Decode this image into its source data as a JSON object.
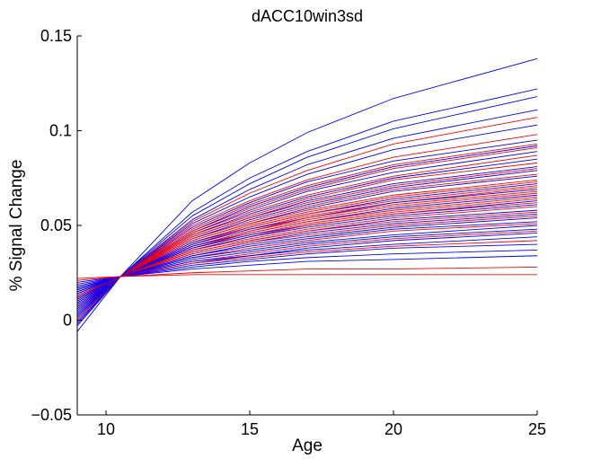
{
  "chart_data": {
    "type": "line",
    "title": "dACC10win3sd",
    "xlabel": "Age",
    "ylabel": "% Signal Change",
    "xlim": [
      9,
      25
    ],
    "ylim": [
      -0.05,
      0.15
    ],
    "xticks": [
      10,
      15,
      20,
      25
    ],
    "yticks": [
      -0.05,
      0,
      0.05,
      0.1,
      0.15
    ],
    "xtick_labels": [
      "10",
      "15",
      "20",
      "25"
    ],
    "ytick_labels": [
      "−0.05",
      "0",
      "0.05",
      "0.1",
      "0.15"
    ],
    "grid": false,
    "x": [
      9,
      10.5,
      13,
      15,
      17,
      20,
      25
    ],
    "anchor": {
      "x": 10.5,
      "y": 0.023
    },
    "series_colors": {
      "blue": "#0000ff",
      "red": "#ff0000"
    },
    "series": [
      {
        "name": "blue-01",
        "color": "blue",
        "values": [
          -0.006,
          0.023,
          0.063,
          0.083,
          0.099,
          0.117,
          0.138
        ]
      },
      {
        "name": "blue-02",
        "color": "blue",
        "values": [
          -0.003,
          0.023,
          0.057,
          0.075,
          0.089,
          0.105,
          0.122
        ]
      },
      {
        "name": "blue-03",
        "color": "blue",
        "values": [
          -0.002,
          0.023,
          0.055,
          0.072,
          0.086,
          0.101,
          0.118
        ]
      },
      {
        "name": "blue-04",
        "color": "blue",
        "values": [
          -0.001,
          0.023,
          0.053,
          0.069,
          0.082,
          0.096,
          0.111
        ]
      },
      {
        "name": "red-01",
        "color": "red",
        "values": [
          0.0,
          0.023,
          0.052,
          0.067,
          0.079,
          0.093,
          0.107
        ]
      },
      {
        "name": "blue-05",
        "color": "blue",
        "values": [
          0.001,
          0.023,
          0.051,
          0.065,
          0.077,
          0.09,
          0.103
        ]
      },
      {
        "name": "red-02",
        "color": "red",
        "values": [
          0.002,
          0.023,
          0.05,
          0.063,
          0.074,
          0.086,
          0.098
        ]
      },
      {
        "name": "blue-06",
        "color": "blue",
        "values": [
          0.002,
          0.023,
          0.049,
          0.062,
          0.073,
          0.084,
          0.095
        ]
      },
      {
        "name": "red-03",
        "color": "red",
        "values": [
          0.003,
          0.023,
          0.048,
          0.061,
          0.071,
          0.082,
          0.093
        ]
      },
      {
        "name": "blue-07",
        "color": "blue",
        "values": [
          0.003,
          0.023,
          0.047,
          0.06,
          0.07,
          0.081,
          0.092
        ]
      },
      {
        "name": "red-04",
        "color": "red",
        "values": [
          0.004,
          0.023,
          0.047,
          0.059,
          0.069,
          0.08,
          0.091
        ]
      },
      {
        "name": "blue-08",
        "color": "blue",
        "values": [
          0.004,
          0.023,
          0.046,
          0.058,
          0.068,
          0.078,
          0.089
        ]
      },
      {
        "name": "red-05",
        "color": "red",
        "values": [
          0.005,
          0.023,
          0.046,
          0.057,
          0.066,
          0.076,
          0.087
        ]
      },
      {
        "name": "blue-09",
        "color": "blue",
        "values": [
          0.005,
          0.023,
          0.045,
          0.056,
          0.065,
          0.075,
          0.085
        ]
      },
      {
        "name": "red-06",
        "color": "red",
        "values": [
          0.006,
          0.023,
          0.045,
          0.055,
          0.064,
          0.074,
          0.083
        ]
      },
      {
        "name": "blue-10",
        "color": "blue",
        "values": [
          0.006,
          0.023,
          0.044,
          0.054,
          0.063,
          0.072,
          0.081
        ]
      },
      {
        "name": "red-07",
        "color": "red",
        "values": [
          0.007,
          0.023,
          0.044,
          0.054,
          0.062,
          0.071,
          0.08
        ]
      },
      {
        "name": "blue-11",
        "color": "blue",
        "values": [
          0.007,
          0.023,
          0.043,
          0.053,
          0.061,
          0.07,
          0.079
        ]
      },
      {
        "name": "red-08",
        "color": "red",
        "values": [
          0.008,
          0.023,
          0.043,
          0.052,
          0.06,
          0.069,
          0.077
        ]
      },
      {
        "name": "blue-12",
        "color": "blue",
        "values": [
          0.008,
          0.023,
          0.042,
          0.051,
          0.059,
          0.068,
          0.076
        ]
      },
      {
        "name": "red-09",
        "color": "red",
        "values": [
          0.009,
          0.023,
          0.042,
          0.051,
          0.058,
          0.066,
          0.074
        ]
      },
      {
        "name": "red-10",
        "color": "red",
        "values": [
          0.009,
          0.023,
          0.041,
          0.05,
          0.057,
          0.065,
          0.073
        ]
      },
      {
        "name": "blue-13",
        "color": "blue",
        "values": [
          0.009,
          0.023,
          0.041,
          0.049,
          0.056,
          0.064,
          0.072
        ]
      },
      {
        "name": "red-11",
        "color": "red",
        "values": [
          0.01,
          0.023,
          0.04,
          0.049,
          0.056,
          0.063,
          0.071
        ]
      },
      {
        "name": "red-12",
        "color": "red",
        "values": [
          0.01,
          0.023,
          0.04,
          0.048,
          0.055,
          0.062,
          0.07
        ]
      },
      {
        "name": "blue-14",
        "color": "blue",
        "values": [
          0.01,
          0.023,
          0.04,
          0.048,
          0.054,
          0.062,
          0.069
        ]
      },
      {
        "name": "red-13",
        "color": "red",
        "values": [
          0.011,
          0.023,
          0.039,
          0.047,
          0.054,
          0.061,
          0.068
        ]
      },
      {
        "name": "red-14",
        "color": "red",
        "values": [
          0.011,
          0.023,
          0.039,
          0.047,
          0.053,
          0.06,
          0.067
        ]
      },
      {
        "name": "blue-15",
        "color": "blue",
        "values": [
          0.011,
          0.023,
          0.039,
          0.046,
          0.052,
          0.059,
          0.066
        ]
      },
      {
        "name": "red-15",
        "color": "red",
        "values": [
          0.012,
          0.023,
          0.038,
          0.046,
          0.052,
          0.058,
          0.065
        ]
      },
      {
        "name": "red-16",
        "color": "red",
        "values": [
          0.012,
          0.023,
          0.038,
          0.045,
          0.051,
          0.057,
          0.064
        ]
      },
      {
        "name": "blue-16",
        "color": "blue",
        "values": [
          0.012,
          0.023,
          0.038,
          0.045,
          0.05,
          0.056,
          0.063
        ]
      },
      {
        "name": "red-17",
        "color": "red",
        "values": [
          0.013,
          0.023,
          0.037,
          0.044,
          0.05,
          0.056,
          0.062
        ]
      },
      {
        "name": "blue-17",
        "color": "blue",
        "values": [
          0.013,
          0.023,
          0.037,
          0.044,
          0.049,
          0.055,
          0.061
        ]
      },
      {
        "name": "red-18",
        "color": "red",
        "values": [
          0.013,
          0.023,
          0.037,
          0.043,
          0.048,
          0.054,
          0.06
        ]
      },
      {
        "name": "blue-18",
        "color": "blue",
        "values": [
          0.014,
          0.023,
          0.036,
          0.042,
          0.047,
          0.053,
          0.058
        ]
      },
      {
        "name": "red-19",
        "color": "red",
        "values": [
          0.014,
          0.023,
          0.036,
          0.042,
          0.047,
          0.052,
          0.057
        ]
      },
      {
        "name": "blue-19",
        "color": "blue",
        "values": [
          0.014,
          0.023,
          0.035,
          0.041,
          0.046,
          0.051,
          0.056
        ]
      },
      {
        "name": "red-20",
        "color": "red",
        "values": [
          0.015,
          0.023,
          0.035,
          0.041,
          0.045,
          0.05,
          0.055
        ]
      },
      {
        "name": "blue-20",
        "color": "blue",
        "values": [
          0.015,
          0.023,
          0.034,
          0.04,
          0.044,
          0.049,
          0.054
        ]
      },
      {
        "name": "blue-21",
        "color": "blue",
        "values": [
          0.015,
          0.023,
          0.034,
          0.039,
          0.043,
          0.048,
          0.052
        ]
      },
      {
        "name": "red-21",
        "color": "red",
        "values": [
          0.016,
          0.023,
          0.033,
          0.038,
          0.042,
          0.047,
          0.051
        ]
      },
      {
        "name": "blue-22",
        "color": "blue",
        "values": [
          0.016,
          0.023,
          0.033,
          0.037,
          0.041,
          0.045,
          0.05
        ]
      },
      {
        "name": "blue-23",
        "color": "blue",
        "values": [
          0.016,
          0.023,
          0.032,
          0.036,
          0.04,
          0.044,
          0.048
        ]
      },
      {
        "name": "red-22",
        "color": "red",
        "values": [
          0.017,
          0.023,
          0.031,
          0.035,
          0.039,
          0.043,
          0.047
        ]
      },
      {
        "name": "blue-24",
        "color": "blue",
        "values": [
          0.017,
          0.023,
          0.031,
          0.034,
          0.038,
          0.042,
          0.046
        ]
      },
      {
        "name": "blue-25",
        "color": "blue",
        "values": [
          0.017,
          0.023,
          0.03,
          0.034,
          0.037,
          0.04,
          0.044
        ]
      },
      {
        "name": "red-23",
        "color": "red",
        "values": [
          0.018,
          0.023,
          0.03,
          0.033,
          0.036,
          0.039,
          0.042
        ]
      },
      {
        "name": "blue-26",
        "color": "blue",
        "values": [
          0.018,
          0.023,
          0.029,
          0.032,
          0.035,
          0.038,
          0.04
        ]
      },
      {
        "name": "blue-27",
        "color": "blue",
        "values": [
          0.019,
          0.023,
          0.028,
          0.031,
          0.033,
          0.035,
          0.037
        ]
      },
      {
        "name": "blue-28",
        "color": "blue",
        "values": [
          0.02,
          0.023,
          0.027,
          0.029,
          0.031,
          0.032,
          0.034
        ]
      },
      {
        "name": "red-24",
        "color": "red",
        "values": [
          0.021,
          0.023,
          0.025,
          0.026,
          0.027,
          0.027,
          0.028
        ]
      },
      {
        "name": "red-25",
        "color": "red",
        "values": [
          0.022,
          0.023,
          0.024,
          0.024,
          0.024,
          0.024,
          0.024
        ]
      }
    ]
  }
}
